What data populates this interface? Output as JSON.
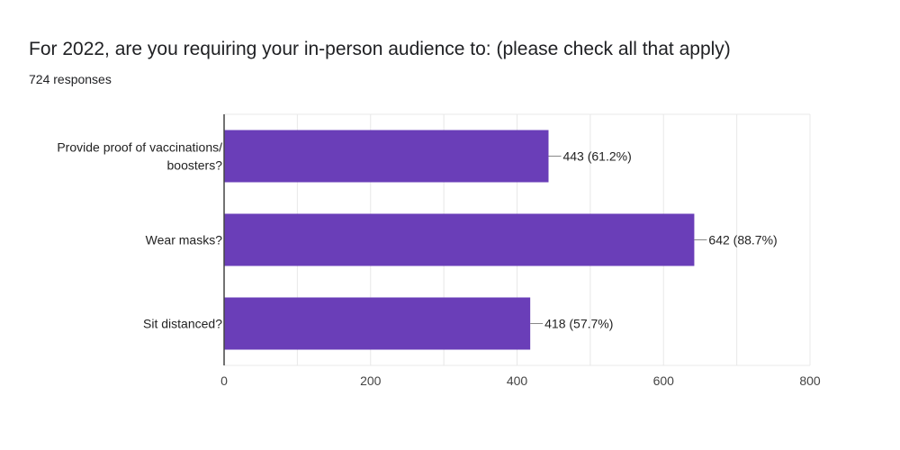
{
  "header": {
    "title": "For 2022, are you requiring your in-person audience to: (please check all that apply)",
    "responses": "724 responses"
  },
  "colors": {
    "bar": "#6a3eb8",
    "grid": "#e8e8e8",
    "axis": "#444444",
    "leader": "#888888"
  },
  "chart_data": {
    "type": "bar",
    "orientation": "horizontal",
    "categories": [
      "Provide proof of vaccinations/ boosters?",
      "Wear masks?",
      "Sit distanced?"
    ],
    "category_lines": [
      [
        "Provide proof of vaccinations/",
        "boosters?"
      ],
      [
        "Wear masks?"
      ],
      [
        "Sit distanced?"
      ]
    ],
    "values": [
      443,
      642,
      418
    ],
    "data_labels": [
      "443 (61.2%)",
      "642 (88.7%)",
      "418 (57.7%)"
    ],
    "xlim": [
      0,
      800
    ],
    "xticks": [
      0,
      200,
      400,
      600,
      800
    ],
    "grid": true,
    "legend": "none"
  }
}
